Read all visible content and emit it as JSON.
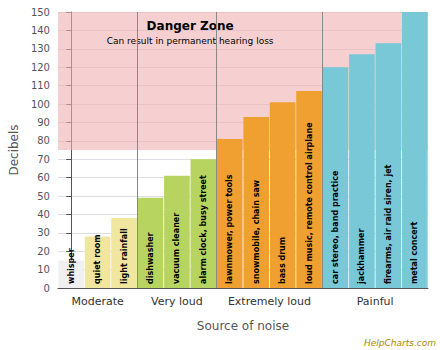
{
  "chart_data": {
    "type": "bar",
    "categories": [
      "whisper",
      "quiet room",
      "light rainfall",
      "dishwasher",
      "vacuum cleaner",
      "alarm clock, busy street",
      "lawnmower, power tools",
      "snowmobile, chain saw",
      "bass drum",
      "loud music, remote control airplane",
      "car stereo, band practice",
      "jackhammer",
      "firearms, air raid siren, jet",
      "metal concert"
    ],
    "values": [
      15,
      28,
      38,
      49,
      61,
      70,
      81,
      93,
      101,
      107,
      120,
      127,
      133,
      150
    ],
    "colors": [
      "#f0f0f0",
      "#f0e6a0",
      "#f0e6a0",
      "#b8d460",
      "#b8d460",
      "#b8d460",
      "#f0a030",
      "#f0a030",
      "#f0a030",
      "#f0a030",
      "#78c8d8",
      "#78c8d8",
      "#78c8d8",
      "#78c8d8"
    ],
    "category_groups": [
      "Moderate",
      "Moderate",
      "Moderate",
      "Very loud",
      "Very loud",
      "Very loud",
      "Extremely loud",
      "Extremely loud",
      "Extremely loud",
      "Extremely loud",
      "Painful",
      "Painful",
      "Painful",
      "Painful"
    ],
    "xlabel": "Source of noise",
    "ylabel": "Decibels",
    "ylim": [
      0,
      150
    ],
    "yticks": [
      0,
      10,
      20,
      30,
      40,
      50,
      60,
      70,
      80,
      90,
      100,
      110,
      120,
      130,
      140,
      150
    ],
    "grid": true,
    "tick_labels": "y",
    "danger_zone": {
      "from": 75,
      "color": "#f0b0b0",
      "label": "Danger Zone",
      "sublabel": "Can result in permanent hearing loss"
    },
    "watermark": "HelpCharts.com"
  }
}
